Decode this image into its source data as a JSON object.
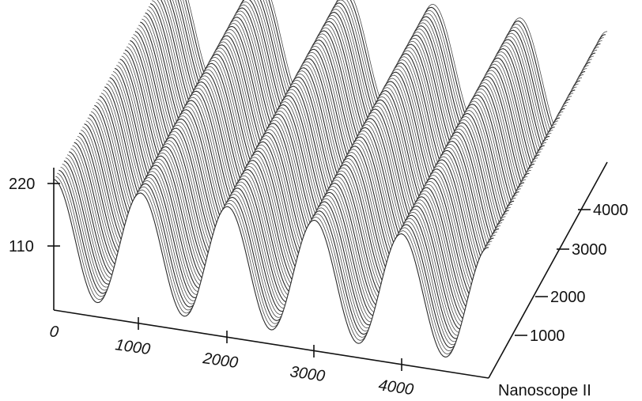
{
  "chart_data": {
    "type": "surface",
    "title": "",
    "caption": "Nanoscope II",
    "x_axis": {
      "label": "",
      "range": [
        0,
        5000
      ],
      "ticks": [
        "0",
        "1000",
        "2000",
        "3000",
        "4000"
      ]
    },
    "y_axis": {
      "label": "",
      "range": [
        0,
        5000
      ],
      "ticks": [
        "1000",
        "2000",
        "3000",
        "4000"
      ]
    },
    "z_axis": {
      "label": "",
      "range": [
        0,
        250
      ],
      "ticks": [
        "110",
        "220"
      ]
    },
    "surface": {
      "pattern": "sinusoidal grating",
      "ridge_count": 5,
      "period_x": 1000,
      "z_min": 25,
      "z_max": 230
    },
    "grid": false,
    "colors": {
      "surface": "#4a4a4a",
      "axes": "#111111",
      "background": "#ffffff"
    }
  }
}
